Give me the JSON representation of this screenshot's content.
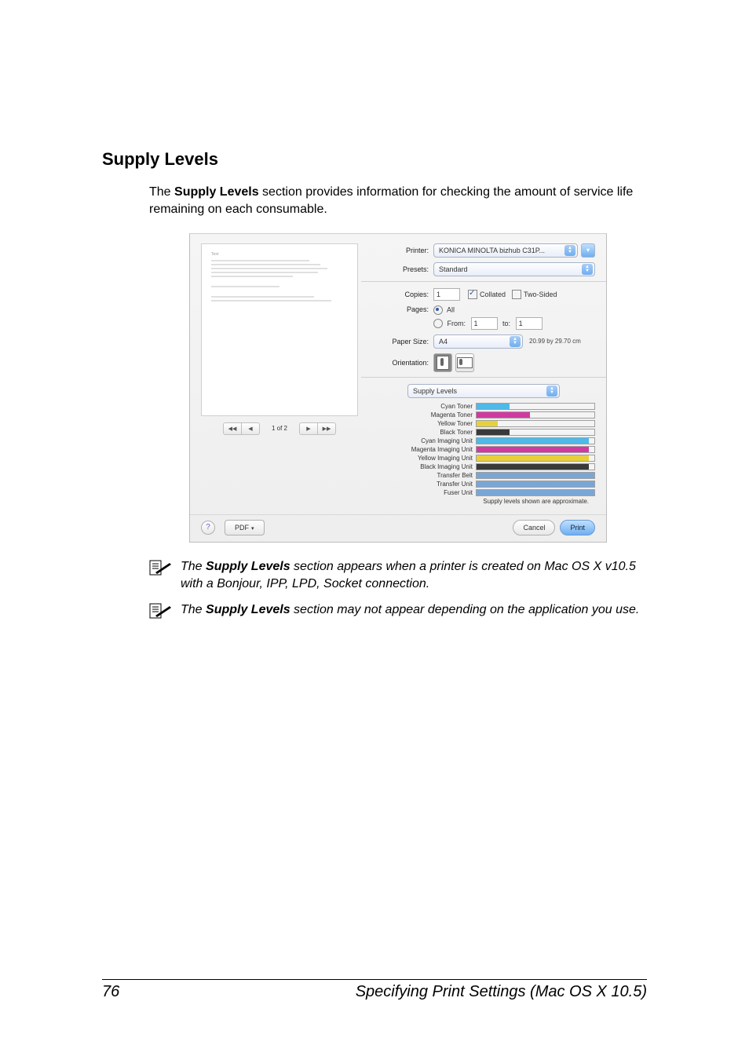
{
  "page": {
    "number": "76",
    "footer_title": "Specifying Print Settings (Mac OS X 10.5)"
  },
  "section": {
    "heading": "Supply Levels",
    "intro_pre": "The ",
    "intro_bold": "Supply Levels",
    "intro_post": " section provides information for checking the amount of service life remaining on each consumable."
  },
  "dialog": {
    "labels": {
      "printer": "Printer:",
      "presets": "Presets:",
      "copies": "Copies:",
      "pages": "Pages:",
      "paper_size": "Paper Size:",
      "orientation": "Orientation:"
    },
    "printer_value": "KONICA MINOLTA bizhub C31P...",
    "presets_value": "Standard",
    "copies_value": "1",
    "collated_label": "Collated",
    "two_sided_label": "Two-Sided",
    "pages": {
      "all": "All",
      "from_label": "From:",
      "from_value": "1",
      "to_label": "to:",
      "to_value": "1"
    },
    "paper_size_value": "A4",
    "paper_dims": "20.99 by 29.70 cm",
    "section_select": "Supply Levels",
    "nav_text": "1 of 2",
    "supplies": [
      {
        "label": "Cyan Toner",
        "pct": 28,
        "color": "#4fb9e8"
      },
      {
        "label": "Magenta Toner",
        "pct": 45,
        "color": "#d03aa0"
      },
      {
        "label": "Yellow Toner",
        "pct": 18,
        "color": "#e8d03a"
      },
      {
        "label": "Black Toner",
        "pct": 28,
        "color": "#3a3a3a"
      },
      {
        "label": "Cyan Imaging Unit",
        "pct": 95,
        "color": "#4fb9e8"
      },
      {
        "label": "Magenta Imaging Unit",
        "pct": 95,
        "color": "#d03aa0"
      },
      {
        "label": "Yellow Imaging Unit",
        "pct": 95,
        "color": "#e8d03a"
      },
      {
        "label": "Black Imaging Unit",
        "pct": 95,
        "color": "#3a3a3a"
      },
      {
        "label": "Transfer Belt",
        "pct": 100,
        "color": "#7aa6d6"
      },
      {
        "label": "Transfer Unit",
        "pct": 100,
        "color": "#7aa6d6"
      },
      {
        "label": "Fuser Unit",
        "pct": 100,
        "color": "#7aa6d6"
      }
    ],
    "approx_note": "Supply levels shown are approximate.",
    "buttons": {
      "pdf": "PDF",
      "cancel": "Cancel",
      "print": "Print"
    }
  },
  "notes": {
    "n1_pre": "The ",
    "n1_bold": "Supply Levels",
    "n1_post": " section appears when a printer is created on Mac OS X v10.5 with a Bonjour, IPP, LPD, Socket connection.",
    "n2_pre": "The ",
    "n2_bold": "Supply Levels",
    "n2_post": " section may not appear depending on the application you use."
  }
}
